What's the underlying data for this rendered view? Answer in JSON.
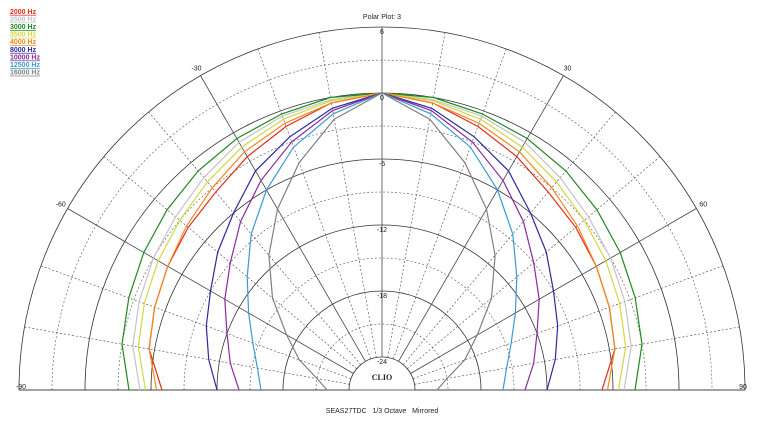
{
  "chart_data": {
    "type": "polar",
    "title": "Polar Plot: 3",
    "footer": "SEAS27TDC   1/3 Octave   Mirrored",
    "logo": "CLIO",
    "mirrored": true,
    "theta": [
      0,
      10,
      20,
      30,
      40,
      50,
      60,
      70,
      80,
      90
    ],
    "rlim": [
      -27,
      6
    ],
    "rticks": [
      6,
      0,
      -6,
      -12,
      -18,
      -24
    ],
    "minor_rticks": [
      3,
      -3,
      -9,
      -15,
      -21
    ],
    "thetaticks": [
      -90,
      -60,
      -30,
      30,
      60,
      90
    ],
    "theta_grid": [
      -90,
      -80,
      -70,
      -60,
      -50,
      -40,
      -30,
      -20,
      -10,
      0,
      10,
      20,
      30,
      40,
      50,
      60,
      70,
      80,
      90
    ],
    "series": [
      {
        "name": "2000 Hz",
        "color": "#e8291c",
        "values": [
          0,
          -0.5,
          -1.5,
          -2.5,
          -3.5,
          -4,
          -4.5,
          -5,
          -5.5,
          -7
        ]
      },
      {
        "name": "2500 Hz",
        "color": "#c4c4c4",
        "values": [
          0,
          -0.2,
          -0.5,
          -1,
          -1.8,
          -2.5,
          -3,
          -3.5,
          -4,
          -5
        ]
      },
      {
        "name": "3000 Hz",
        "color": "#1e8a1e",
        "values": [
          0,
          0,
          -0.3,
          -0.6,
          -1,
          -1.5,
          -2,
          -2.5,
          -3,
          -4
        ]
      },
      {
        "name": "3500 Hz",
        "color": "#d6d640",
        "values": [
          0,
          -0.3,
          -0.8,
          -1.5,
          -2.3,
          -3,
          -3.5,
          -4,
          -4.5,
          -5.5
        ]
      },
      {
        "name": "4000 Hz",
        "color": "#f08a1c",
        "values": [
          0,
          -0.5,
          -1.2,
          -2,
          -3,
          -3.8,
          -4.5,
          -5,
          -5.5,
          -6.5
        ]
      },
      {
        "name": "8000 Hz",
        "color": "#2a2aa0",
        "values": [
          0,
          -1,
          -2.5,
          -4,
          -6,
          -7.5,
          -9,
          -10,
          -11,
          -12
        ]
      },
      {
        "name": "10000 Hz",
        "color": "#8a2a9a",
        "values": [
          0,
          -1.2,
          -3,
          -5,
          -7,
          -9,
          -10.5,
          -12,
          -13,
          -14
        ]
      },
      {
        "name": "12500 Hz",
        "color": "#3a9ad8",
        "values": [
          0,
          -1.5,
          -3.5,
          -6,
          -8.5,
          -11,
          -13,
          -14.5,
          -15.5,
          -16
        ]
      },
      {
        "name": "16000 Hz",
        "color": "#808080",
        "values": [
          0,
          -2,
          -5,
          -8,
          -11,
          -14,
          -17,
          -19,
          -21,
          -22
        ]
      }
    ]
  }
}
